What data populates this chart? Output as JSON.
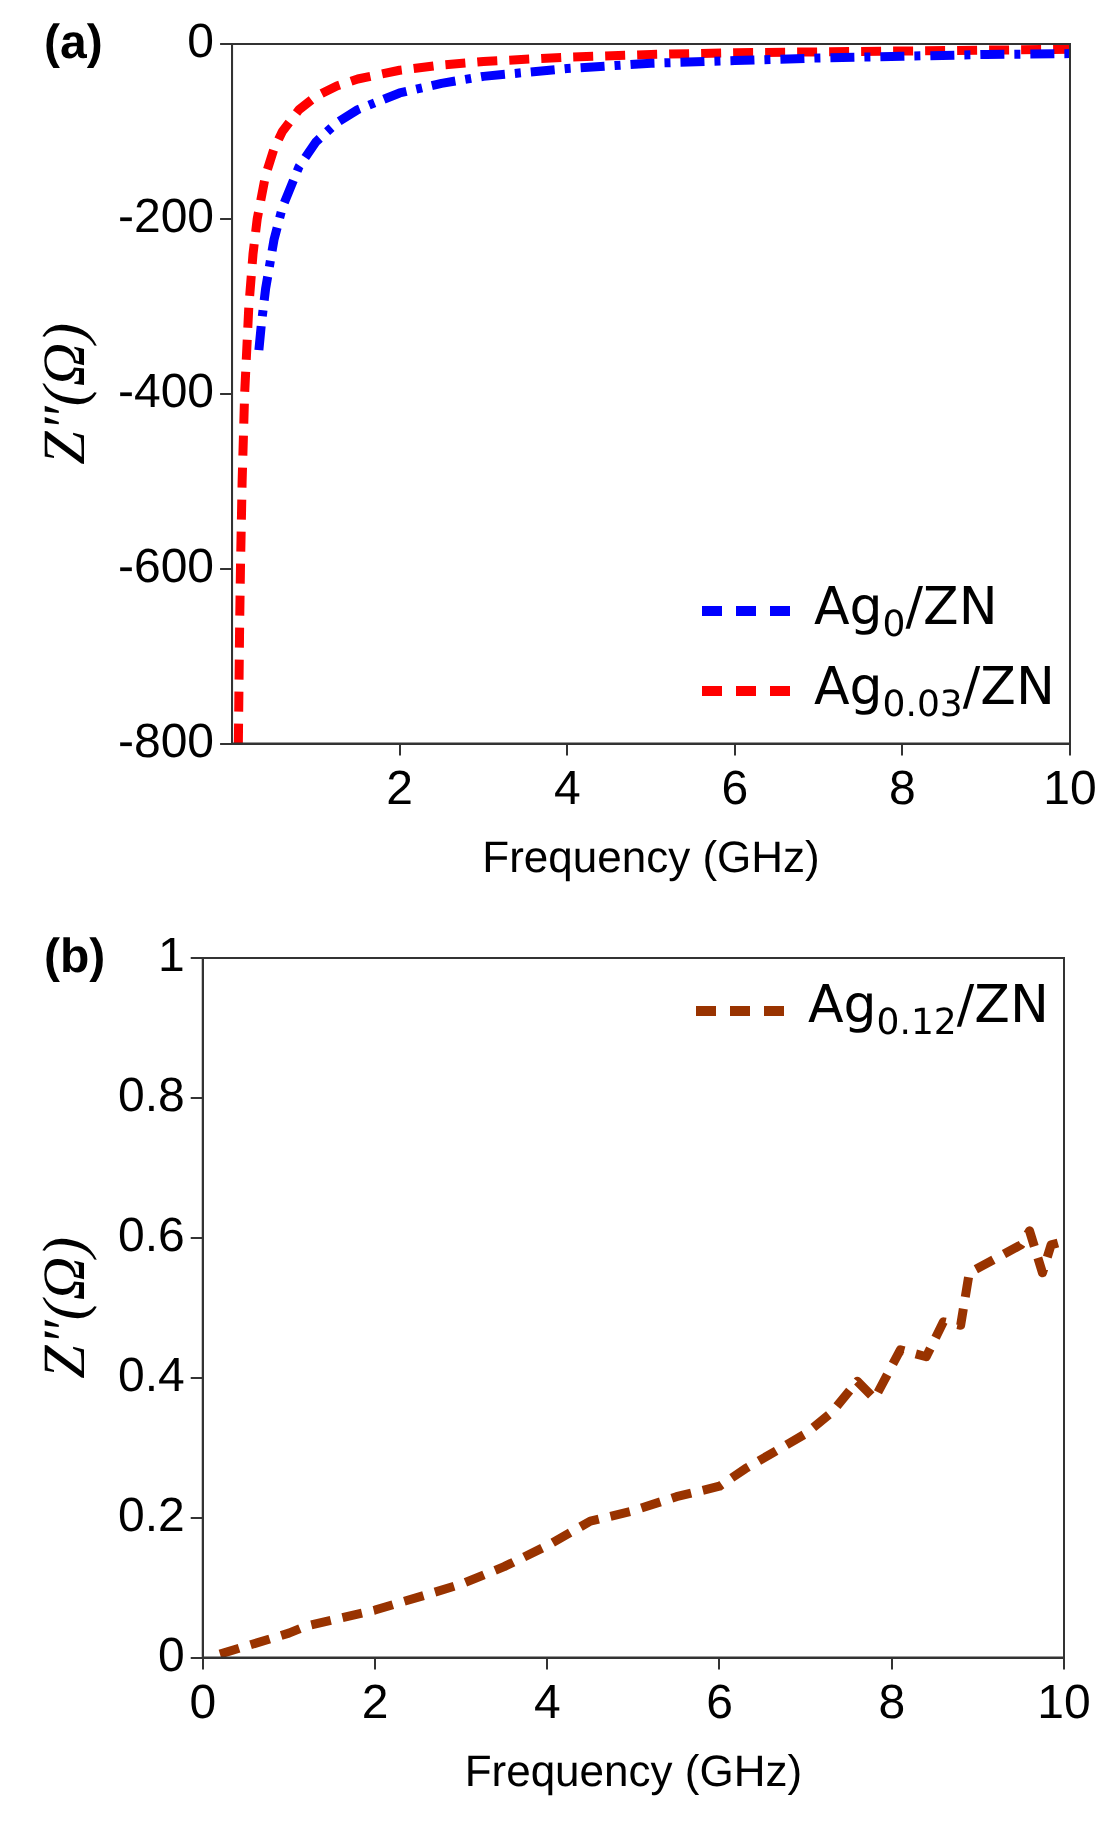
{
  "chart_data": [
    {
      "type": "line",
      "title": "(a)",
      "xlabel": "Frequency (GHz)",
      "ylabel": "Z″(Ω)",
      "xlim": [
        0,
        10
      ],
      "xticks": [
        2,
        4,
        6,
        8,
        10
      ],
      "ylim": [
        -800,
        0
      ],
      "yticks": [
        -800,
        -600,
        -400,
        -200,
        0
      ],
      "grid": false,
      "legend": "bottom right",
      "marker": "none",
      "series": [
        {
          "name": "Ag$_{0}$/ZN",
          "color": "#0000ff",
          "line_style": "dashdot",
          "x": [
            0.32,
            0.35,
            0.4,
            0.5,
            0.6,
            0.8,
            1,
            1.25,
            1.5,
            2,
            2.5,
            3,
            4,
            5,
            6,
            7,
            8,
            9,
            10
          ],
          "values": [
            -350,
            -320,
            -280,
            -224,
            -187,
            -140,
            -112,
            -90,
            -75,
            -56,
            -45,
            -37,
            -28,
            -22,
            -19,
            -16,
            -14,
            -12,
            -11
          ]
        },
        {
          "name": "Ag$_{0.03}$/ZN",
          "color": "#ff0000",
          "line_style": "dashed",
          "x": [
            0.075,
            0.09,
            0.1,
            0.12,
            0.15,
            0.2,
            0.25,
            0.3,
            0.4,
            0.5,
            0.6,
            0.8,
            1,
            1.25,
            1.5,
            2,
            2.5,
            3,
            4,
            5,
            6,
            7,
            8,
            9,
            10
          ],
          "values": [
            -800,
            -667,
            -600,
            -500,
            -400,
            -300,
            -240,
            -200,
            -150,
            -120,
            -100,
            -75,
            -60,
            -48,
            -40,
            -30,
            -24,
            -20,
            -15,
            -12,
            -10,
            -9,
            -8,
            -7,
            -6
          ]
        }
      ]
    },
    {
      "type": "line",
      "title": "(b)",
      "xlabel": "Frequency (GHz)",
      "ylabel": "Z″(Ω)",
      "xlim": [
        0,
        10
      ],
      "xticks": [
        0,
        2,
        4,
        6,
        8,
        10
      ],
      "ylim": [
        0,
        1
      ],
      "yticks": [
        0,
        0.2,
        0.4,
        0.6,
        0.8,
        1
      ],
      "grid": false,
      "legend": "top right",
      "marker": "none",
      "series": [
        {
          "name": "Ag$_{0.12}$/ZN",
          "color": "#993300",
          "line_style": "dashed",
          "x": [
            0.2,
            1,
            1.2,
            2,
            2.6,
            3,
            3.5,
            4,
            4.5,
            5,
            5.5,
            6,
            6.3,
            7,
            7.3,
            7.6,
            7.8,
            8.1,
            8.4,
            8.6,
            8.8,
            8.9,
            9.2,
            9.5,
            9.6,
            9.75,
            9.85,
            10
          ],
          "values": [
            0.005,
            0.035,
            0.045,
            0.068,
            0.09,
            0.105,
            0.13,
            0.16,
            0.195,
            0.21,
            0.23,
            0.245,
            0.27,
            0.32,
            0.35,
            0.395,
            0.37,
            0.44,
            0.43,
            0.48,
            0.475,
            0.55,
            0.57,
            0.59,
            0.61,
            0.55,
            0.59,
            0.595
          ]
        }
      ]
    }
  ]
}
